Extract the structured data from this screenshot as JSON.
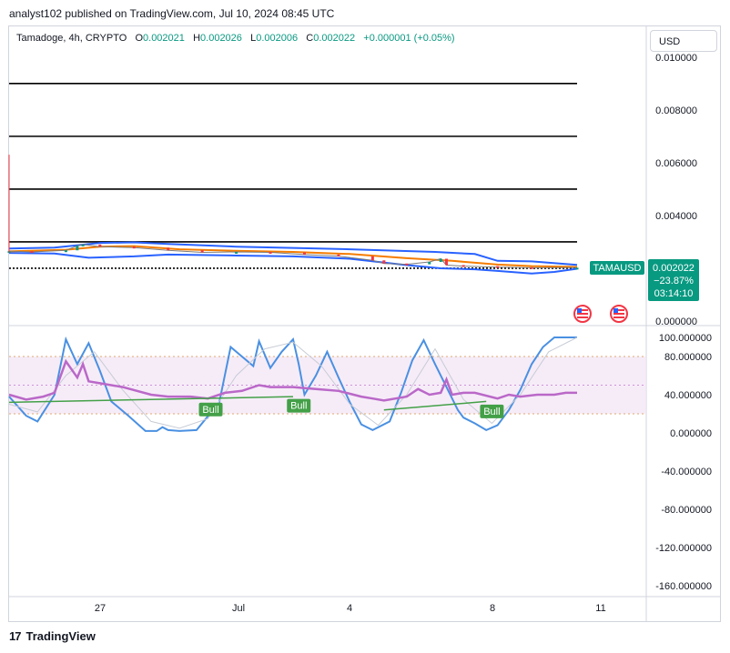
{
  "header": {
    "published": "analyst102 published on TradingView.com, Jul 10, 2024 08:45 UTC"
  },
  "legend": {
    "symbol": "Tamadoge, 4h, CRYPTO",
    "o_key": "O",
    "o_val": "0.002021",
    "h_key": "H",
    "h_val": "0.002026",
    "l_key": "L",
    "l_val": "0.002006",
    "c_key": "C",
    "c_val": "0.002022",
    "change": "+0.000001 (+0.05%)"
  },
  "currency": "USD",
  "price_tag": {
    "ticker": "TAMAUSD",
    "price": "0.002022",
    "change_pct": "−23.87%",
    "countdown": "03:14:10"
  },
  "footer": {
    "brand": "TradingView"
  },
  "colors": {
    "up": "#089981",
    "down": "#f23645",
    "bollinger": "#2962ff",
    "ma": "#f57c00",
    "stoch_k": "#4a90e2",
    "rsi": "#ba68c8",
    "bull": "#43a047"
  },
  "chart_data": [
    {
      "type": "line",
      "pane": "price",
      "y_ticks": [
        "0.000000",
        "0.002000",
        "0.004000",
        "0.006000",
        "0.008000",
        "0.010000"
      ],
      "x_ticks": [
        "27",
        "Jul",
        "4",
        "8",
        "11"
      ],
      "ylim": [
        0,
        0.0102
      ],
      "horizontal_levels": [
        0.002,
        0.003,
        0.005,
        0.007,
        0.009
      ],
      "series": [
        {
          "kind": "upper-band",
          "x": [
            0,
            8,
            16,
            22,
            28,
            40,
            50,
            60,
            75,
            82,
            86,
            92,
            100
          ],
          "values": [
            0.00275,
            0.00278,
            0.00296,
            0.00298,
            0.00292,
            0.00282,
            0.00277,
            0.00272,
            0.00262,
            0.00254,
            0.00228,
            0.00226,
            0.00213
          ]
        },
        {
          "kind": "lower-band",
          "x": [
            0,
            8,
            14,
            22,
            28,
            40,
            50,
            60,
            70,
            76,
            82,
            86,
            92,
            96,
            100
          ],
          "values": [
            0.00258,
            0.00256,
            0.0024,
            0.00245,
            0.00252,
            0.00248,
            0.00245,
            0.00236,
            0.00212,
            0.002,
            0.00196,
            0.0019,
            0.0018,
            0.00186,
            0.00198
          ]
        },
        {
          "kind": "ma",
          "x": [
            0,
            10,
            16,
            22,
            30,
            40,
            50,
            60,
            70,
            78,
            86,
            92,
            100
          ],
          "values": [
            0.00264,
            0.0027,
            0.00282,
            0.00284,
            0.00272,
            0.00266,
            0.00262,
            0.00254,
            0.00238,
            0.00228,
            0.00214,
            0.00208,
            0.00205
          ]
        },
        {
          "kind": "price",
          "x": [
            0,
            4,
            10,
            12,
            13,
            16,
            22,
            28,
            34,
            40,
            46,
            52,
            58,
            64,
            66,
            70,
            74,
            76,
            77,
            80,
            86,
            92,
            100
          ],
          "values": [
            0.00265,
            0.00262,
            0.00268,
            0.00285,
            0.0029,
            0.00282,
            0.00278,
            0.00268,
            0.0026,
            0.00262,
            0.0026,
            0.00252,
            0.00246,
            0.0023,
            0.00218,
            0.00215,
            0.00224,
            0.00236,
            0.00212,
            0.00208,
            0.00204,
            0.00202,
            0.002022
          ]
        }
      ]
    },
    {
      "type": "line",
      "pane": "oscillator",
      "y_ticks": [
        "100.000000",
        "80.000000",
        "40.000000",
        "0.000000",
        "-40.000000",
        "-80.000000",
        "-120.000000",
        "-160.000000"
      ],
      "ylim": [
        -175,
        112
      ],
      "bands": [
        20,
        80
      ],
      "annotations": [
        {
          "text": "Bull",
          "x": 35.5,
          "y": 24
        },
        {
          "text": "Bull",
          "x": 51,
          "y": 28
        },
        {
          "text": "Bull",
          "x": 85,
          "y": 22
        }
      ],
      "series": [
        {
          "kind": "stoch-k",
          "x": [
            0,
            3,
            5,
            8,
            10,
            12,
            14,
            16,
            18,
            21,
            24,
            26,
            27,
            28,
            30,
            33,
            37,
            39,
            41,
            43,
            44,
            46,
            48,
            50,
            51,
            52,
            54,
            56,
            58,
            60,
            62,
            64,
            67,
            69,
            71,
            73,
            75,
            77,
            79,
            80,
            82,
            84,
            86,
            88,
            90,
            92,
            94,
            96,
            97,
            100
          ],
          "values": [
            38,
            18,
            12,
            40,
            98,
            72,
            94,
            65,
            33,
            18,
            2,
            2,
            6,
            3,
            2,
            3,
            32,
            90,
            80,
            70,
            96,
            68,
            85,
            98,
            72,
            40,
            60,
            85,
            58,
            32,
            9,
            3,
            12,
            42,
            76,
            97,
            72,
            48,
            24,
            16,
            10,
            3,
            8,
            24,
            45,
            72,
            90,
            100,
            100,
            100
          ]
        },
        {
          "kind": "stoch-d",
          "x": [
            0,
            5,
            10,
            15,
            20,
            25,
            30,
            35,
            40,
            45,
            50,
            55,
            60,
            65,
            70,
            75,
            80,
            85,
            90,
            95,
            100
          ],
          "values": [
            30,
            22,
            60,
            85,
            45,
            12,
            5,
            15,
            60,
            88,
            95,
            70,
            30,
            8,
            40,
            88,
            35,
            10,
            40,
            85,
            100
          ]
        },
        {
          "kind": "rsi",
          "x": [
            0,
            3,
            6,
            8,
            10,
            12,
            13,
            14,
            16,
            20,
            25,
            28,
            32,
            35,
            38,
            41,
            44,
            46,
            50,
            54,
            58,
            62,
            64,
            66,
            70,
            72,
            74,
            76,
            77,
            78,
            80,
            82,
            86,
            88,
            90,
            93,
            96,
            98,
            100
          ],
          "values": [
            40,
            35,
            38,
            42,
            75,
            58,
            72,
            54,
            52,
            48,
            40,
            38,
            38,
            36,
            42,
            44,
            50,
            48,
            48,
            46,
            44,
            38,
            36,
            34,
            38,
            46,
            40,
            42,
            56,
            40,
            42,
            42,
            36,
            40,
            38,
            40,
            40,
            42,
            42
          ]
        },
        {
          "kind": "divergence",
          "x": [
            0,
            50
          ],
          "values": [
            32,
            38
          ]
        },
        {
          "kind": "divergence",
          "x": [
            66,
            84
          ],
          "values": [
            24,
            33
          ]
        }
      ]
    }
  ]
}
